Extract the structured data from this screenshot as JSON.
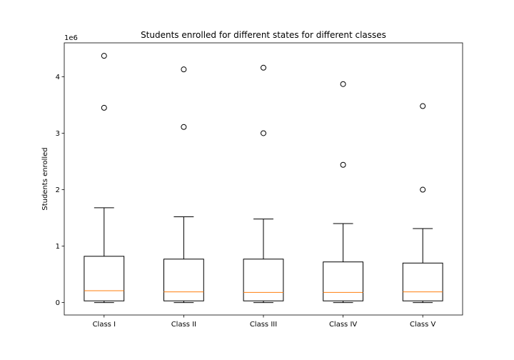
{
  "chart_data": {
    "type": "box",
    "title": "Students enrolled for different states for different classes",
    "xlabel": "",
    "ylabel": "Students enrolled",
    "y_offset_label": "1e6",
    "ylim": [
      -220000,
      4600000
    ],
    "yticks": [
      0,
      1000000,
      2000000,
      3000000,
      4000000
    ],
    "ytick_labels": [
      "0",
      "1",
      "2",
      "3",
      "4"
    ],
    "categories": [
      "Class I",
      "Class II",
      "Class III",
      "Class IV",
      "Class V"
    ],
    "boxes": [
      {
        "whisker_low": 0,
        "q1": 30000,
        "median": 210000,
        "q3": 820000,
        "whisker_high": 1680000,
        "outliers": [
          3450000,
          4370000
        ]
      },
      {
        "whisker_low": 0,
        "q1": 30000,
        "median": 190000,
        "q3": 770000,
        "whisker_high": 1520000,
        "outliers": [
          3110000,
          4130000
        ]
      },
      {
        "whisker_low": 0,
        "q1": 30000,
        "median": 180000,
        "q3": 770000,
        "whisker_high": 1480000,
        "outliers": [
          3000000,
          4160000
        ]
      },
      {
        "whisker_low": 0,
        "q1": 30000,
        "median": 180000,
        "q3": 720000,
        "whisker_high": 1400000,
        "outliers": [
          2440000,
          3870000
        ]
      },
      {
        "whisker_low": 0,
        "q1": 30000,
        "median": 190000,
        "q3": 700000,
        "whisker_high": 1310000,
        "outliers": [
          2000000,
          3480000
        ]
      }
    ],
    "colors": {
      "box": "#000000",
      "median": "#ff7f0e",
      "outlier": "#000000"
    },
    "grid": false,
    "legend": "none"
  }
}
